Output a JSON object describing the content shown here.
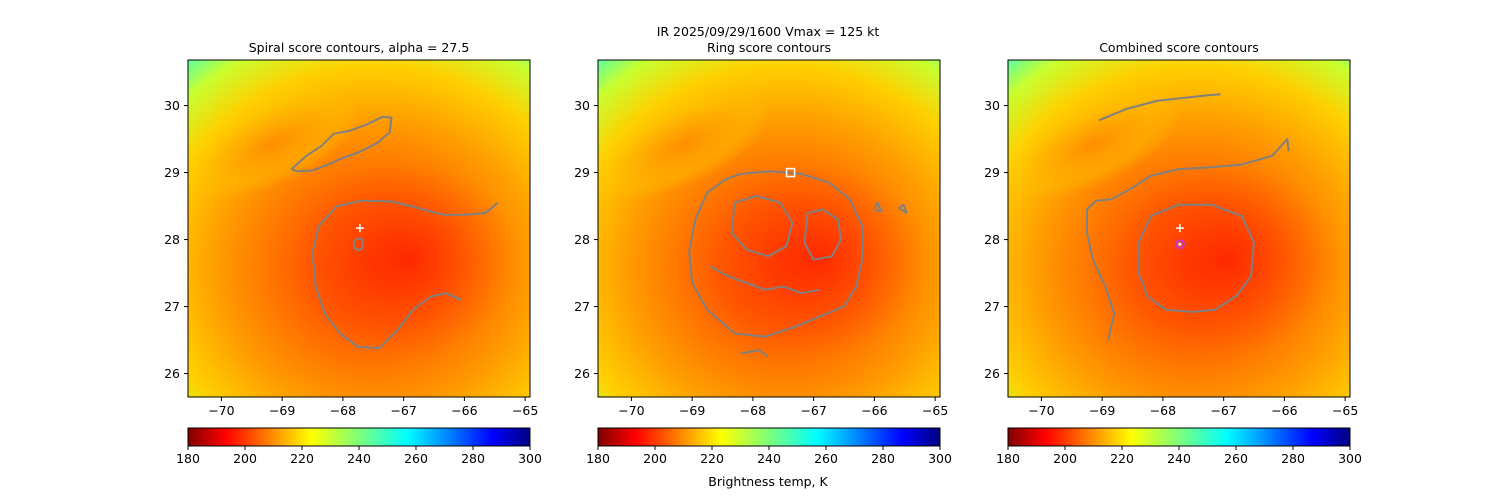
{
  "suptitle": "IR  2025/09/29/1600    Vmax = 125 kt",
  "colorbar_label": "Brightness temp, K",
  "colormap": "jet_r",
  "storm": {
    "center_lon": -67.78,
    "center_lat": 27.9
  },
  "chart_data": [
    {
      "type": "heatmap",
      "title": "Spiral score contours, alpha = 27.5",
      "xlim": [
        -70.55,
        -64.92
      ],
      "ylim": [
        25.65,
        30.68
      ],
      "xticks": [
        -70,
        -69,
        -68,
        -67,
        -66,
        -65
      ],
      "xtick_labels": [
        "−70",
        "−69",
        "−68",
        "−67",
        "−66",
        "−65"
      ],
      "yticks": [
        26,
        27,
        28,
        29,
        30
      ],
      "ytick_labels": [
        "26",
        "27",
        "28",
        "29",
        "30"
      ],
      "colorbar": {
        "vmin": 180,
        "vmax": 300,
        "ticks": [
          "180",
          "200",
          "220",
          "240",
          "260",
          "280",
          "300"
        ]
      },
      "markers": [
        {
          "kind": "plus",
          "lon": -67.72,
          "lat": 28.17,
          "color": "#ffffff"
        }
      ],
      "contours": [
        {
          "color": "#808080",
          "points": [
            [
              -68.85,
              29.05
            ],
            [
              -68.6,
              29.25
            ],
            [
              -68.35,
              29.4
            ],
            [
              -68.15,
              29.58
            ],
            [
              -67.9,
              29.62
            ],
            [
              -67.6,
              29.72
            ],
            [
              -67.35,
              29.83
            ],
            [
              -67.2,
              29.82
            ],
            [
              -67.23,
              29.6
            ],
            [
              -67.45,
              29.43
            ],
            [
              -67.75,
              29.3
            ],
            [
              -68.05,
              29.2
            ],
            [
              -68.3,
              29.1
            ],
            [
              -68.5,
              29.03
            ],
            [
              -68.75,
              29.02
            ],
            [
              -68.85,
              29.05
            ]
          ]
        },
        {
          "color": "#808080",
          "points": [
            [
              -65.45,
              28.55
            ],
            [
              -65.65,
              28.4
            ],
            [
              -65.95,
              28.37
            ],
            [
              -66.35,
              28.37
            ],
            [
              -66.75,
              28.47
            ],
            [
              -67.2,
              28.57
            ],
            [
              -67.7,
              28.58
            ],
            [
              -68.1,
              28.5
            ],
            [
              -68.4,
              28.2
            ],
            [
              -68.5,
              27.8
            ],
            [
              -68.45,
              27.3
            ],
            [
              -68.3,
              26.9
            ],
            [
              -68.05,
              26.6
            ],
            [
              -67.75,
              26.4
            ],
            [
              -67.4,
              26.38
            ],
            [
              -67.1,
              26.65
            ],
            [
              -66.85,
              26.95
            ],
            [
              -66.55,
              27.15
            ],
            [
              -66.3,
              27.2
            ],
            [
              -66.05,
              27.1
            ]
          ]
        },
        {
          "color": "#808080",
          "points": [
            [
              -67.82,
              27.96
            ],
            [
              -67.76,
              28.02
            ],
            [
              -67.68,
              28.0
            ],
            [
              -67.67,
              27.88
            ],
            [
              -67.74,
              27.84
            ],
            [
              -67.81,
              27.87
            ],
            [
              -67.82,
              27.96
            ]
          ]
        }
      ]
    },
    {
      "type": "heatmap",
      "title": "Ring score contours",
      "xlim": [
        -70.55,
        -64.92
      ],
      "ylim": [
        25.65,
        30.68
      ],
      "xticks": [
        -70,
        -69,
        -68,
        -67,
        -66,
        -65
      ],
      "xtick_labels": [
        "−70",
        "−69",
        "−68",
        "−67",
        "−66",
        "−65"
      ],
      "yticks": [
        26,
        27,
        28,
        29,
        30
      ],
      "ytick_labels": [
        "26",
        "27",
        "28",
        "29",
        "30"
      ],
      "colorbar": {
        "vmin": 180,
        "vmax": 300,
        "ticks": [
          "180",
          "200",
          "220",
          "240",
          "260",
          "280",
          "300"
        ]
      },
      "markers": [
        {
          "kind": "square",
          "lon": -67.38,
          "lat": 29.0,
          "color": "#ffffff"
        }
      ],
      "contours": [
        {
          "color": "#808080",
          "points": [
            [
              -68.2,
              28.98
            ],
            [
              -67.7,
              29.02
            ],
            [
              -67.2,
              28.98
            ],
            [
              -66.75,
              28.85
            ],
            [
              -66.4,
              28.6
            ],
            [
              -66.2,
              28.2
            ],
            [
              -66.2,
              27.7
            ],
            [
              -66.3,
              27.3
            ],
            [
              -66.5,
              27.0
            ],
            [
              -66.9,
              26.85
            ],
            [
              -67.3,
              26.7
            ],
            [
              -67.8,
              26.55
            ],
            [
              -68.3,
              26.6
            ],
            [
              -68.75,
              26.95
            ],
            [
              -69.0,
              27.35
            ],
            [
              -69.05,
              27.8
            ],
            [
              -68.95,
              28.3
            ],
            [
              -68.75,
              28.7
            ],
            [
              -68.45,
              28.9
            ],
            [
              -68.2,
              28.98
            ]
          ]
        },
        {
          "color": "#808080",
          "points": [
            [
              -68.3,
              28.55
            ],
            [
              -67.95,
              28.65
            ],
            [
              -67.55,
              28.55
            ],
            [
              -67.35,
              28.25
            ],
            [
              -67.45,
              27.9
            ],
            [
              -67.75,
              27.75
            ],
            [
              -68.1,
              27.85
            ],
            [
              -68.35,
              28.1
            ],
            [
              -68.3,
              28.55
            ]
          ]
        },
        {
          "color": "#808080",
          "points": [
            [
              -67.1,
              28.4
            ],
            [
              -66.85,
              28.45
            ],
            [
              -66.6,
              28.3
            ],
            [
              -66.55,
              28.0
            ],
            [
              -66.7,
              27.75
            ],
            [
              -67.0,
              27.7
            ],
            [
              -67.15,
              27.95
            ],
            [
              -67.1,
              28.4
            ]
          ]
        },
        {
          "color": "#808080",
          "points": [
            [
              -68.7,
              27.6
            ],
            [
              -68.4,
              27.45
            ],
            [
              -68.1,
              27.35
            ],
            [
              -67.8,
              27.25
            ],
            [
              -67.5,
              27.3
            ],
            [
              -67.2,
              27.2
            ],
            [
              -66.9,
              27.25
            ]
          ]
        },
        {
          "color": "#808080",
          "points": [
            [
              -68.2,
              26.3
            ],
            [
              -67.9,
              26.35
            ],
            [
              -67.75,
              26.25
            ]
          ]
        },
        {
          "color": "#808080",
          "points": [
            [
              -66.0,
              28.45
            ],
            [
              -65.95,
              28.55
            ],
            [
              -65.88,
              28.42
            ],
            [
              -66.0,
              28.45
            ]
          ]
        },
        {
          "color": "#808080",
          "points": [
            [
              -65.6,
              28.47
            ],
            [
              -65.52,
              28.52
            ],
            [
              -65.47,
              28.4
            ],
            [
              -65.6,
              28.47
            ]
          ]
        }
      ]
    },
    {
      "type": "heatmap",
      "title": "Combined score contours",
      "xlim": [
        -70.55,
        -64.92
      ],
      "ylim": [
        25.65,
        30.68
      ],
      "xticks": [
        -70,
        -69,
        -68,
        -67,
        -66,
        -65
      ],
      "xtick_labels": [
        "−70",
        "−69",
        "−68",
        "−67",
        "−66",
        "−65"
      ],
      "yticks": [
        26,
        27,
        28,
        29,
        30
      ],
      "ytick_labels": [
        "26",
        "27",
        "28",
        "29",
        "30"
      ],
      "colorbar": {
        "vmin": 180,
        "vmax": 300,
        "ticks": [
          "180",
          "200",
          "220",
          "240",
          "260",
          "280",
          "300"
        ]
      },
      "markers": [
        {
          "kind": "plus",
          "lon": -67.72,
          "lat": 28.17,
          "color": "#ffffff"
        },
        {
          "kind": "ring",
          "lon": -67.72,
          "lat": 27.93,
          "color": "#cc33cc"
        }
      ],
      "contours": [
        {
          "color": "#808080",
          "points": [
            [
              -69.05,
              29.78
            ],
            [
              -68.6,
              29.95
            ],
            [
              -68.1,
              30.07
            ],
            [
              -67.6,
              30.12
            ],
            [
              -67.3,
              30.15
            ],
            [
              -67.05,
              30.17
            ]
          ]
        },
        {
          "color": "#808080",
          "points": [
            [
              -68.9,
              26.5
            ],
            [
              -68.8,
              26.9
            ],
            [
              -68.95,
              27.3
            ],
            [
              -69.15,
              27.7
            ],
            [
              -69.25,
              28.1
            ],
            [
              -69.25,
              28.45
            ],
            [
              -69.1,
              28.58
            ],
            [
              -68.85,
              28.6
            ],
            [
              -68.6,
              28.72
            ],
            [
              -68.2,
              28.95
            ],
            [
              -67.75,
              29.05
            ],
            [
              -67.2,
              29.08
            ],
            [
              -66.7,
              29.12
            ],
            [
              -66.2,
              29.25
            ],
            [
              -65.95,
              29.5
            ],
            [
              -65.93,
              29.32
            ]
          ]
        },
        {
          "color": "#808080",
          "points": [
            [
              -67.75,
              28.52
            ],
            [
              -67.2,
              28.52
            ],
            [
              -66.7,
              28.35
            ],
            [
              -66.5,
              27.95
            ],
            [
              -66.55,
              27.45
            ],
            [
              -66.8,
              27.15
            ],
            [
              -67.15,
              26.95
            ],
            [
              -67.5,
              26.92
            ],
            [
              -67.95,
              26.95
            ],
            [
              -68.25,
              27.15
            ],
            [
              -68.4,
              27.5
            ],
            [
              -68.4,
              27.95
            ],
            [
              -68.2,
              28.35
            ],
            [
              -67.75,
              28.52
            ]
          ]
        }
      ]
    }
  ]
}
